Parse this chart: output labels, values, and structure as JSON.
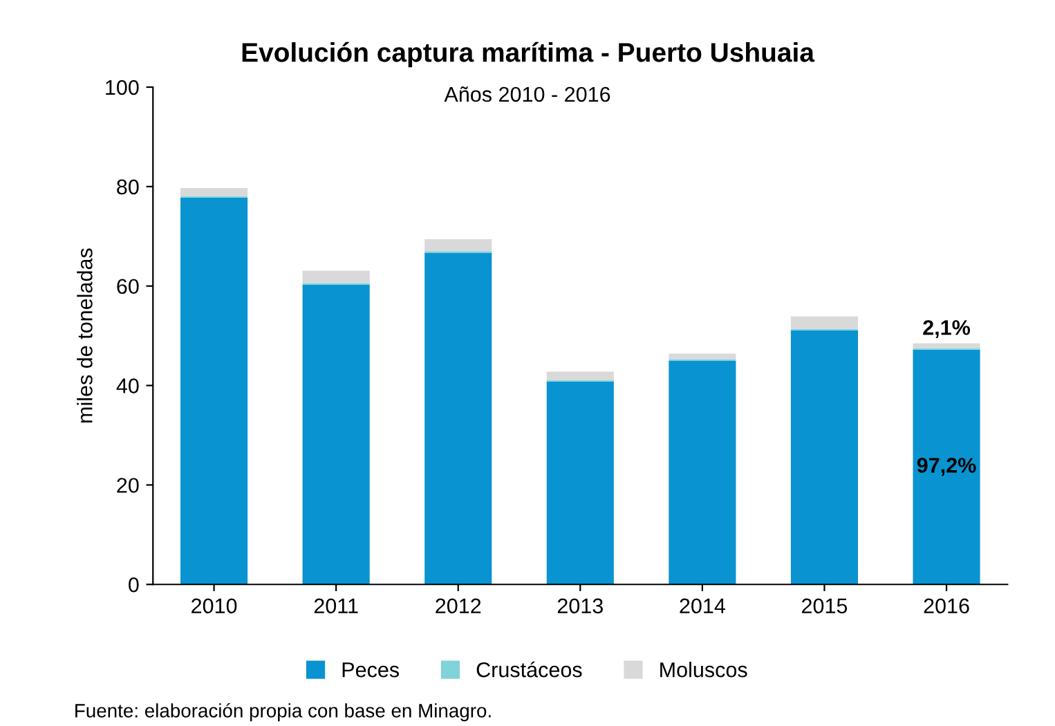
{
  "chart_data": {
    "type": "bar",
    "title": "Evolución captura marítima - Puerto Ushuaia",
    "subtitle": "Años 2010 - 2016",
    "ylabel": "miles de toneladas",
    "categories": [
      "2010",
      "2011",
      "2012",
      "2013",
      "2014",
      "2015",
      "2016"
    ],
    "stacked": true,
    "series": [
      {
        "name": "Peces",
        "color": "#0a93d1",
        "values": [
          77.8,
          60.3,
          66.7,
          40.8,
          45.0,
          51.1,
          47.2
        ]
      },
      {
        "name": "Crustáceos",
        "color": "#7fd3d9",
        "values": [
          0.3,
          0.3,
          0.3,
          0.3,
          0.3,
          0.3,
          0.3
        ]
      },
      {
        "name": "Moluscos",
        "color": "#d9d9d9",
        "values": [
          1.6,
          2.5,
          2.4,
          1.7,
          1.1,
          2.5,
          1.0
        ]
      }
    ],
    "ylim": [
      0,
      100
    ],
    "yticks": [
      0,
      20,
      40,
      60,
      80,
      100
    ],
    "grid": false,
    "legend": "bottom",
    "annotations": [
      "97,2%",
      "2,1%",
      "Fuente: elaboración propia con base en Minagro."
    ]
  }
}
